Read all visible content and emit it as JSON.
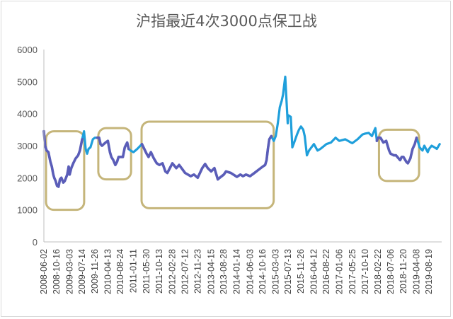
{
  "chart_data": {
    "type": "line",
    "title": "沪指最近4次3000点保卫战",
    "xlabel": "",
    "ylabel": "",
    "ylim": [
      0,
      6000
    ],
    "yticks": [
      0,
      1000,
      2000,
      3000,
      4000,
      5000,
      6000
    ],
    "grid": false,
    "legend": "none",
    "colors": {
      "line": "#1f9fdb",
      "highlight": "#5b5db8",
      "box": "#c5b57a",
      "axis": "#bfbfbf"
    },
    "xtick_labels": [
      "2008-06-02",
      "2008-10-16",
      "2009-03-03",
      "2009-07-14",
      "2009-11-26",
      "2010-04-13",
      "2010-08-24",
      "2011-01-11",
      "2011-05-30",
      "2011-10-13",
      "2012-02-28",
      "2012-07-12",
      "2012-11-23",
      "2013-04-15",
      "2013-08-28",
      "2014-01-14",
      "2014-06-03",
      "2014-10-16",
      "2015-03-03",
      "2015-07-13",
      "2015-11-26",
      "2016-04-12",
      "2016-08-22",
      "2017-01-06",
      "2017-05-25",
      "2017-10-10",
      "2018-02-22",
      "2018-07-06",
      "2018-11-20",
      "2019-04-08",
      "2019-08-19"
    ],
    "series": [
      {
        "values": [
          [
            "2008-06-02",
            3450
          ],
          [
            "2008-06-15",
            3000
          ],
          [
            "2008-07-01",
            2850
          ],
          [
            "2008-07-20",
            2800
          ],
          [
            "2008-08-10",
            2500
          ],
          [
            "2008-08-25",
            2350
          ],
          [
            "2008-09-10",
            2100
          ],
          [
            "2008-09-20",
            2000
          ],
          [
            "2008-10-05",
            1900
          ],
          [
            "2008-10-20",
            1750
          ],
          [
            "2008-11-05",
            1720
          ],
          [
            "2008-11-20",
            1950
          ],
          [
            "2008-12-05",
            2000
          ],
          [
            "2008-12-25",
            1850
          ],
          [
            "2009-01-10",
            1900
          ],
          [
            "2009-02-05",
            2100
          ],
          [
            "2009-02-20",
            2350
          ],
          [
            "2009-03-03",
            2100
          ],
          [
            "2009-03-20",
            2300
          ],
          [
            "2009-04-10",
            2450
          ],
          [
            "2009-05-05",
            2600
          ],
          [
            "2009-06-01",
            2700
          ],
          [
            "2009-06-20",
            2850
          ],
          [
            "2009-07-14",
            3200
          ],
          [
            "2009-08-03",
            3450
          ],
          [
            "2009-08-20",
            2900
          ],
          [
            "2009-09-05",
            2750
          ],
          [
            "2009-09-20",
            2900
          ],
          [
            "2009-10-10",
            2950
          ],
          [
            "2009-11-05",
            3200
          ],
          [
            "2009-11-26",
            3250
          ],
          [
            "2009-12-20",
            3250
          ],
          [
            "2010-01-10",
            3250
          ],
          [
            "2010-01-25",
            3050
          ],
          [
            "2010-02-10",
            3000
          ],
          [
            "2010-03-01",
            3050
          ],
          [
            "2010-03-20",
            3100
          ],
          [
            "2010-04-13",
            3150
          ],
          [
            "2010-05-05",
            2800
          ],
          [
            "2010-05-20",
            2650
          ],
          [
            "2010-06-10",
            2550
          ],
          [
            "2010-07-01",
            2400
          ],
          [
            "2010-07-20",
            2500
          ],
          [
            "2010-08-05",
            2650
          ],
          [
            "2010-08-24",
            2650
          ],
          [
            "2010-09-20",
            2650
          ],
          [
            "2010-10-10",
            2950
          ],
          [
            "2010-11-05",
            3100
          ],
          [
            "2010-11-20",
            2900
          ],
          [
            "2010-12-10",
            2850
          ],
          [
            "2011-01-11",
            2800
          ],
          [
            "2011-02-20",
            2900
          ],
          [
            "2011-04-10",
            3050
          ],
          [
            "2011-05-30",
            2750
          ],
          [
            "2011-06-20",
            2650
          ],
          [
            "2011-07-15",
            2800
          ],
          [
            "2011-08-15",
            2600
          ],
          [
            "2011-09-15",
            2450
          ],
          [
            "2011-10-13",
            2400
          ],
          [
            "2011-11-15",
            2450
          ],
          [
            "2011-12-15",
            2200
          ],
          [
            "2012-01-05",
            2150
          ],
          [
            "2012-02-28",
            2450
          ],
          [
            "2012-04-10",
            2300
          ],
          [
            "2012-05-10",
            2400
          ],
          [
            "2012-07-12",
            2150
          ],
          [
            "2012-09-10",
            2050
          ],
          [
            "2012-10-15",
            2100
          ],
          [
            "2012-11-23",
            2000
          ],
          [
            "2013-01-10",
            2300
          ],
          [
            "2013-02-10",
            2430
          ],
          [
            "2013-03-10",
            2300
          ],
          [
            "2013-04-15",
            2200
          ],
          [
            "2013-05-20",
            2300
          ],
          [
            "2013-06-25",
            1950
          ],
          [
            "2013-07-15",
            2000
          ],
          [
            "2013-08-28",
            2100
          ],
          [
            "2013-09-20",
            2200
          ],
          [
            "2013-11-10",
            2150
          ],
          [
            "2014-01-14",
            2030
          ],
          [
            "2014-02-20",
            2100
          ],
          [
            "2014-03-20",
            2050
          ],
          [
            "2014-04-20",
            2100
          ],
          [
            "2014-06-03",
            2050
          ],
          [
            "2014-07-20",
            2150
          ],
          [
            "2014-09-01",
            2250
          ],
          [
            "2014-10-16",
            2350
          ],
          [
            "2014-11-10",
            2400
          ],
          [
            "2014-11-25",
            2550
          ],
          [
            "2014-12-10",
            2900
          ],
          [
            "2014-12-25",
            3200
          ],
          [
            "2015-01-15",
            3300
          ],
          [
            "2015-02-10",
            3150
          ],
          [
            "2015-03-03",
            3300
          ],
          [
            "2015-03-25",
            3700
          ],
          [
            "2015-04-15",
            4200
          ],
          [
            "2015-05-05",
            4400
          ],
          [
            "2015-05-20",
            4600
          ],
          [
            "2015-06-05",
            5000
          ],
          [
            "2015-06-12",
            5150
          ],
          [
            "2015-06-22",
            4600
          ],
          [
            "2015-07-08",
            3700
          ],
          [
            "2015-07-13",
            3950
          ],
          [
            "2015-08-10",
            3900
          ],
          [
            "2015-08-26",
            2950
          ],
          [
            "2015-09-15",
            3100
          ],
          [
            "2015-10-15",
            3350
          ],
          [
            "2015-11-05",
            3500
          ],
          [
            "2015-11-26",
            3600
          ],
          [
            "2015-12-20",
            3500
          ],
          [
            "2016-01-05",
            3300
          ],
          [
            "2016-01-28",
            2700
          ],
          [
            "2016-02-20",
            2850
          ],
          [
            "2016-04-12",
            3050
          ],
          [
            "2016-05-20",
            2850
          ],
          [
            "2016-06-20",
            2900
          ],
          [
            "2016-08-22",
            3050
          ],
          [
            "2016-10-10",
            3100
          ],
          [
            "2016-11-28",
            3250
          ],
          [
            "2017-01-06",
            3150
          ],
          [
            "2017-03-10",
            3200
          ],
          [
            "2017-05-10",
            3100
          ],
          [
            "2017-05-25",
            3080
          ],
          [
            "2017-07-20",
            3200
          ],
          [
            "2017-09-10",
            3350
          ],
          [
            "2017-10-10",
            3380
          ],
          [
            "2017-11-15",
            3400
          ],
          [
            "2017-12-20",
            3300
          ],
          [
            "2018-01-25",
            3550
          ],
          [
            "2018-02-10",
            3150
          ],
          [
            "2018-02-22",
            3250
          ],
          [
            "2018-03-20",
            3250
          ],
          [
            "2018-04-20",
            3100
          ],
          [
            "2018-05-20",
            3150
          ],
          [
            "2018-06-20",
            2850
          ],
          [
            "2018-07-06",
            2750
          ],
          [
            "2018-08-10",
            2700
          ],
          [
            "2018-09-01",
            2700
          ],
          [
            "2018-10-15",
            2550
          ],
          [
            "2018-11-01",
            2650
          ],
          [
            "2018-11-20",
            2650
          ],
          [
            "2018-12-20",
            2500
          ],
          [
            "2019-01-05",
            2450
          ],
          [
            "2019-02-01",
            2600
          ],
          [
            "2019-02-25",
            2900
          ],
          [
            "2019-03-20",
            3050
          ],
          [
            "2019-04-08",
            3250
          ],
          [
            "2019-04-25",
            3100
          ],
          [
            "2019-05-10",
            2950
          ],
          [
            "2019-06-10",
            2850
          ],
          [
            "2019-06-30",
            3000
          ],
          [
            "2019-08-05",
            2800
          ],
          [
            "2019-08-19",
            2900
          ],
          [
            "2019-09-15",
            3000
          ],
          [
            "2019-10-15",
            2950
          ],
          [
            "2019-11-10",
            2900
          ],
          [
            "2019-12-10",
            3050
          ]
        ]
      }
    ],
    "highlights": [
      {
        "from": "2008-06-02",
        "to": "2009-07-20",
        "ymin": 1000,
        "ymax": 3450
      },
      {
        "from": "2009-12-10",
        "to": "2010-12-01",
        "ymin": 1950,
        "ymax": 3550
      },
      {
        "from": "2011-03-15",
        "to": "2015-01-25",
        "ymin": 1050,
        "ymax": 3750
      },
      {
        "from": "2018-02-10",
        "to": "2019-04-20",
        "ymin": 1900,
        "ymax": 3500
      }
    ]
  }
}
